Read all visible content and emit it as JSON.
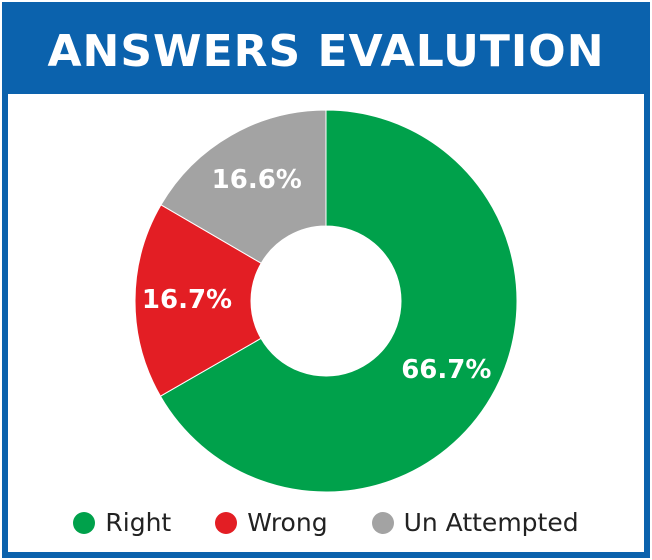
{
  "chart_data": {
    "type": "pie",
    "title": "ANSWERS EVALUTION",
    "categories": [
      "Right",
      "Wrong",
      "Un Attempted"
    ],
    "values": [
      66.7,
      16.7,
      16.6
    ],
    "data_labels": [
      "66.7%",
      "16.7%",
      "16.6%"
    ],
    "colors": [
      "#00a14b",
      "#e31e24",
      "#a3a3a3"
    ],
    "donut": true,
    "legend": "bottom"
  }
}
